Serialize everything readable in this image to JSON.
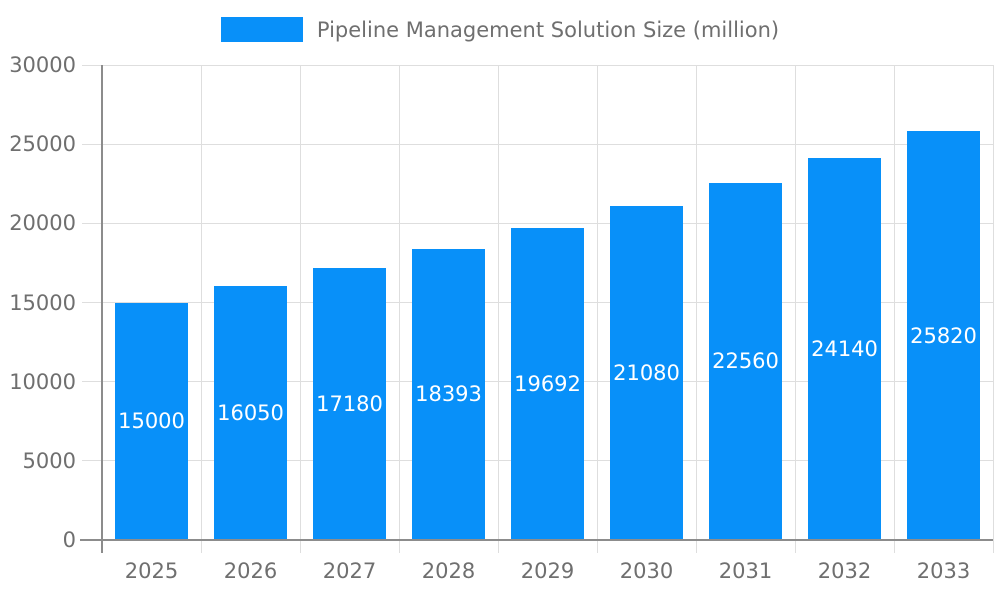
{
  "chart_data": {
    "type": "bar",
    "title": "Pipeline Management Solution Size (million)",
    "categories": [
      "2025",
      "2026",
      "2027",
      "2028",
      "2029",
      "2030",
      "2031",
      "2032",
      "2033"
    ],
    "values": [
      15000,
      16050,
      17180,
      18393,
      19692,
      21080,
      22560,
      24140,
      25820
    ],
    "bar_value_labels": [
      "15000",
      "16050",
      "17180",
      "18393",
      "19692",
      "21080",
      "22560",
      "24140",
      "25820"
    ],
    "xlabel": "",
    "ylabel": "",
    "ylim": [
      0,
      30000
    ],
    "yticks": [
      0,
      5000,
      10000,
      15000,
      20000,
      25000,
      30000
    ],
    "ytick_labels": [
      "0",
      "5000",
      "10000",
      "15000",
      "20000",
      "25000",
      "30000"
    ],
    "grid": true,
    "legend_position": "top",
    "colors": {
      "bar": "#0890f9",
      "bar_label_text": "#ffffff",
      "axis_text": "#6f6f6f",
      "grid_line": "#dedede",
      "axis_line": "#8c8c8c",
      "background": "#ffffff"
    }
  }
}
